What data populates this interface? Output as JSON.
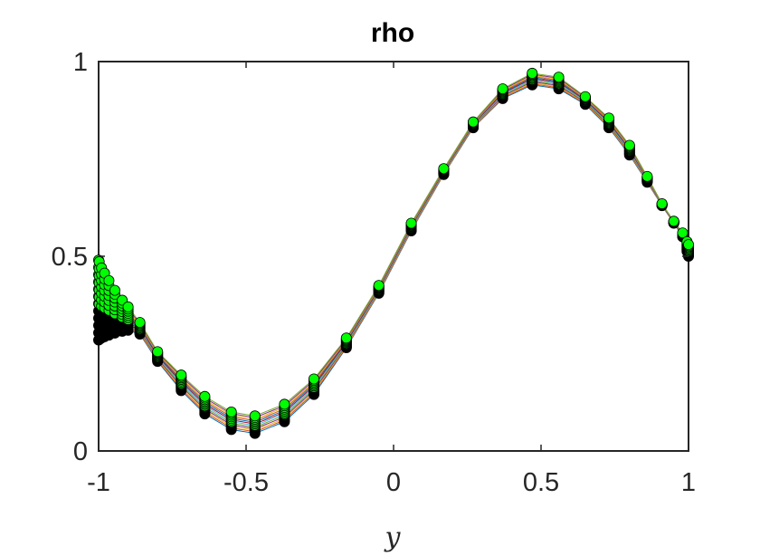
{
  "chart_data": {
    "type": "line",
    "title": "rho",
    "xlabel": "y",
    "ylabel": "",
    "xlim": [
      -1,
      1
    ],
    "ylim": [
      0,
      1
    ],
    "x_ticks": [
      "-1",
      "-0.5",
      "0",
      "0.5",
      "1"
    ],
    "y_ticks": [
      "0",
      "0.5",
      "1"
    ],
    "grid": false,
    "legend": "none",
    "num_curves": 12,
    "curve_description": "family of nearly coincident profiles; rho rises near y=-1, minimum near y=-0.5, maximum near y=0.5",
    "node_points_y": [
      -1,
      -0.998,
      -0.99,
      -0.98,
      -0.965,
      -0.945,
      -0.92,
      -0.9,
      -0.86,
      -0.8,
      -0.72,
      -0.64,
      -0.55,
      -0.47,
      -0.37,
      -0.27,
      -0.16,
      -0.05,
      0.06,
      0.17,
      0.27,
      0.37,
      0.47,
      0.56,
      0.65,
      0.73,
      0.8,
      0.86,
      0.91,
      0.95,
      0.98,
      0.995,
      1
    ],
    "series_extremes": {
      "top": [
        [
          -1.0,
          0.49
        ],
        [
          -0.99,
          0.47
        ],
        [
          -0.975,
          0.45
        ],
        [
          -0.955,
          0.425
        ],
        [
          -0.935,
          0.4
        ],
        [
          -0.9,
          0.37
        ],
        [
          -0.86,
          0.33
        ],
        [
          -0.8,
          0.255
        ],
        [
          -0.72,
          0.195
        ],
        [
          -0.64,
          0.14
        ],
        [
          -0.55,
          0.1
        ],
        [
          -0.47,
          0.09
        ],
        [
          -0.37,
          0.12
        ],
        [
          -0.27,
          0.185
        ],
        [
          -0.16,
          0.29
        ],
        [
          -0.05,
          0.425
        ],
        [
          0.06,
          0.585
        ],
        [
          0.17,
          0.725
        ],
        [
          0.27,
          0.845
        ],
        [
          0.37,
          0.93
        ],
        [
          0.47,
          0.97
        ],
        [
          0.56,
          0.96
        ],
        [
          0.65,
          0.91
        ],
        [
          0.73,
          0.855
        ],
        [
          0.8,
          0.785
        ],
        [
          0.86,
          0.705
        ],
        [
          0.91,
          0.635
        ],
        [
          0.95,
          0.59
        ],
        [
          0.98,
          0.56
        ],
        [
          1.0,
          0.53
        ]
      ],
      "bottom": [
        [
          -1.0,
          0.285
        ],
        [
          -0.99,
          0.29
        ],
        [
          -0.975,
          0.295
        ],
        [
          -0.955,
          0.3
        ],
        [
          -0.935,
          0.305
        ],
        [
          -0.9,
          0.31
        ],
        [
          -0.86,
          0.3
        ],
        [
          -0.8,
          0.23
        ],
        [
          -0.72,
          0.155
        ],
        [
          -0.64,
          0.095
        ],
        [
          -0.55,
          0.055
        ],
        [
          -0.47,
          0.045
        ],
        [
          -0.37,
          0.075
        ],
        [
          -0.27,
          0.145
        ],
        [
          -0.16,
          0.265
        ],
        [
          -0.05,
          0.405
        ],
        [
          0.06,
          0.565
        ],
        [
          0.17,
          0.71
        ],
        [
          0.27,
          0.83
        ],
        [
          0.37,
          0.905
        ],
        [
          0.47,
          0.94
        ],
        [
          0.56,
          0.93
        ],
        [
          0.65,
          0.89
        ],
        [
          0.73,
          0.83
        ],
        [
          0.8,
          0.76
        ],
        [
          0.86,
          0.69
        ],
        [
          0.91,
          0.63
        ],
        [
          0.95,
          0.585
        ],
        [
          0.98,
          0.55
        ],
        [
          1.0,
          0.5
        ]
      ]
    },
    "colors": {
      "marker_fill": "#00ff00",
      "marker_edge": "#000000",
      "lines": [
        "#0072bd",
        "#d95319",
        "#edb120",
        "#7e2f8e",
        "#77ac30",
        "#4dbeee",
        "#a2142f",
        "#0072bd",
        "#d95319",
        "#edb120",
        "#7e2f8e",
        "#77ac30"
      ]
    }
  }
}
